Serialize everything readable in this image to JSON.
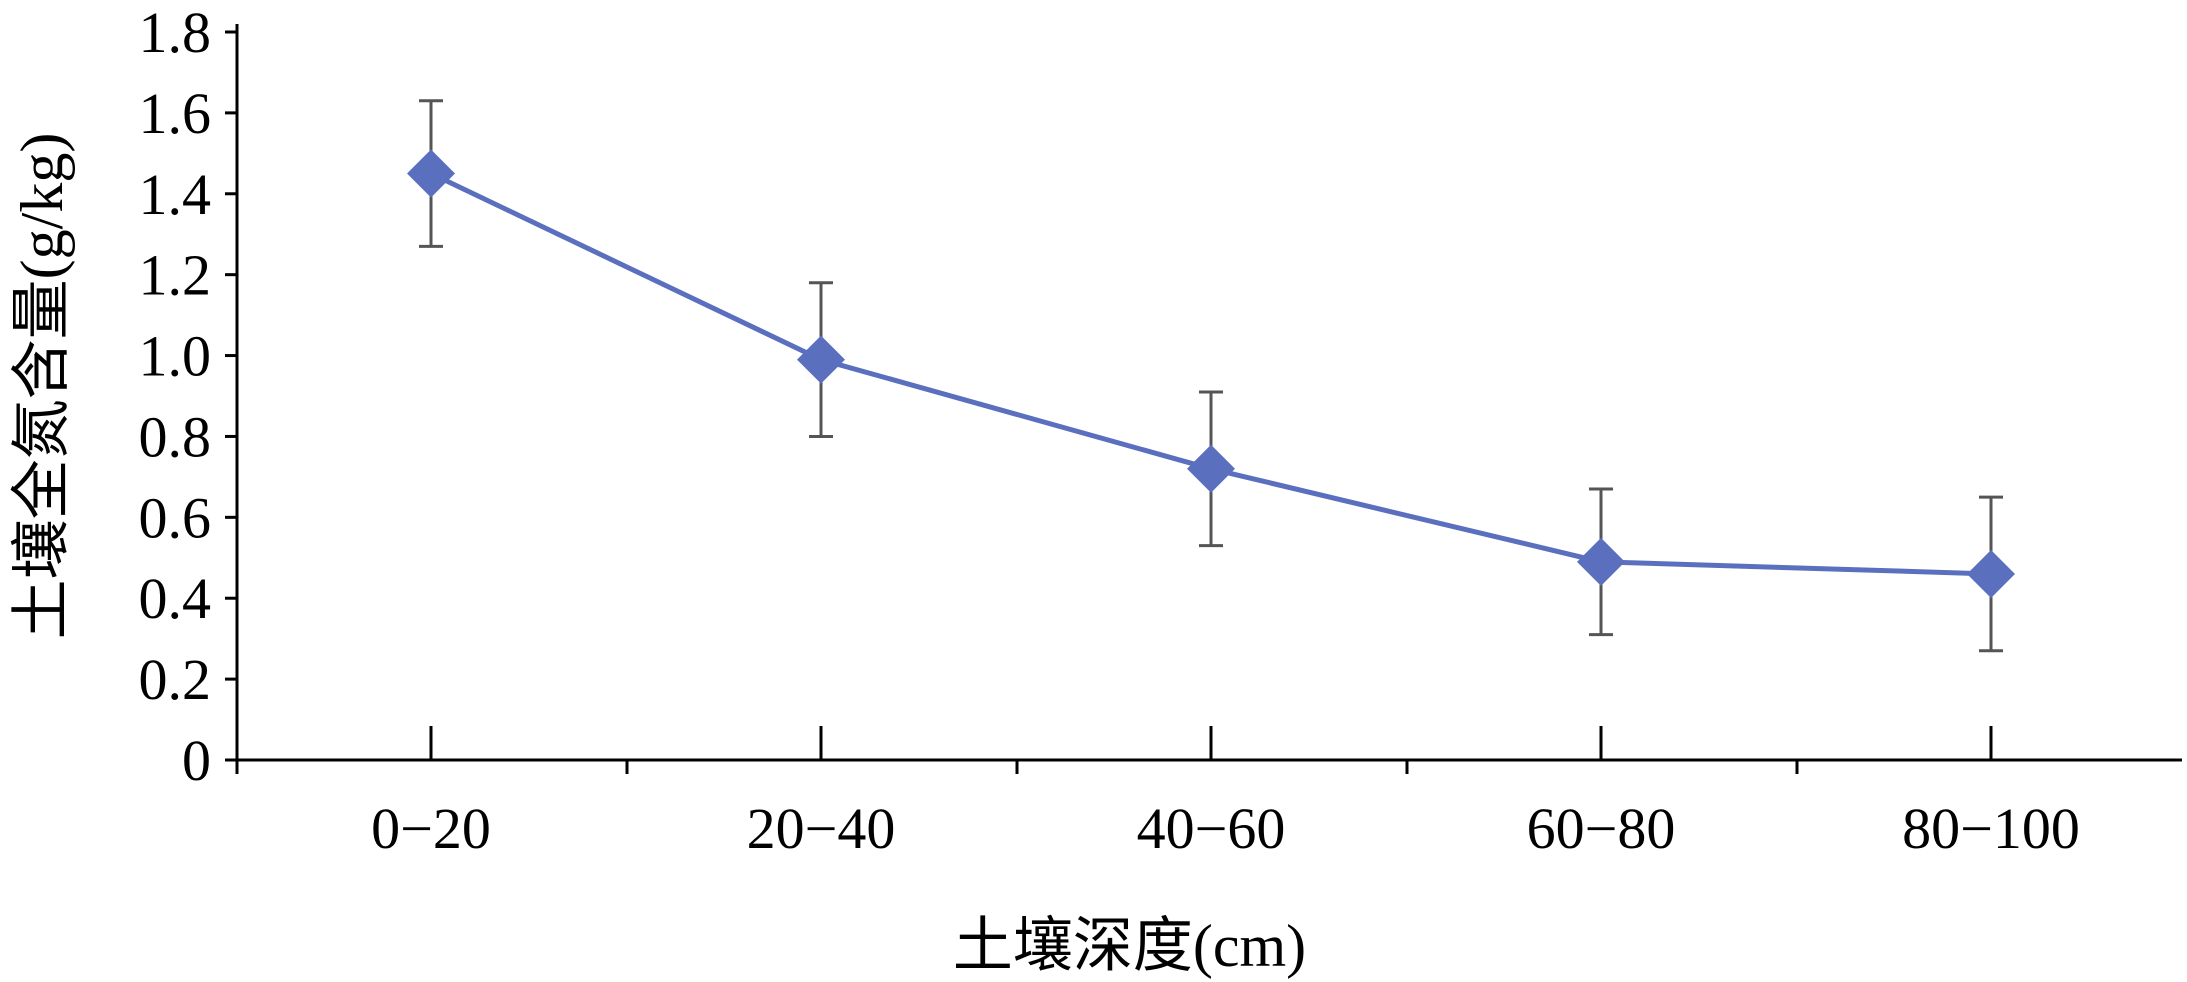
{
  "chart_data": {
    "type": "line",
    "title": "",
    "xlabel": "土壤深度(cm)",
    "ylabel": "土壤全氮含量(g/kg)",
    "categories": [
      "0−20",
      "20−40",
      "40−60",
      "60−80",
      "80−100"
    ],
    "series": [
      {
        "values": [
          1.45,
          0.99,
          0.72,
          0.49,
          0.46
        ],
        "error": [
          0.18,
          0.19,
          0.19,
          0.18,
          0.19
        ],
        "color": "#5B6FBF",
        "marker": "diamond"
      }
    ],
    "ylim": [
      0,
      1.8
    ],
    "yticks": [
      "0",
      "0.2",
      "0.4",
      "0.6",
      "0.8",
      "1.0",
      "1.2",
      "1.4",
      "1.6",
      "1.8"
    ],
    "grid": false,
    "legend": "none",
    "error_bar_color": "#555555"
  }
}
